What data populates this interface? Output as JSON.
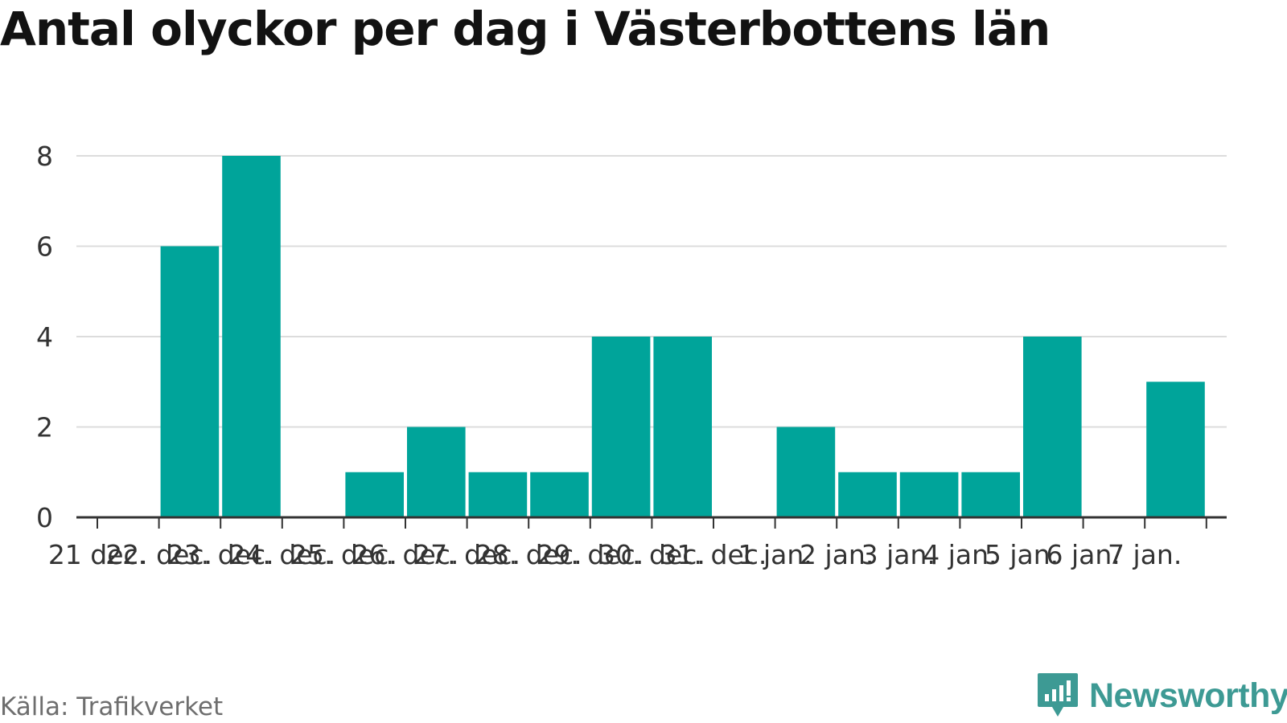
{
  "title": "Antal olyckor per dag i Västerbottens län",
  "source": "Källa: Trafikverket",
  "brand": {
    "name": "Newsworthy",
    "icon": "newsworthy-logo-icon",
    "color": "#3d9a94"
  },
  "chart_data": {
    "type": "bar",
    "categories": [
      "21 dec.",
      "22. dec.",
      "23. dec.",
      "24. dec.",
      "25. dec.",
      "26. dec.",
      "27. dec.",
      "28. dec.",
      "29. dec.",
      "30. dec.",
      "31. dec.",
      "1 jan.",
      "2 jan.",
      "3 jan.",
      "4 jan.",
      "5 jan.",
      "6 jan.",
      "7 jan."
    ],
    "values": [
      0,
      6,
      8,
      0,
      1,
      2,
      1,
      1,
      4,
      4,
      0,
      2,
      1,
      1,
      1,
      4,
      0,
      3
    ],
    "ylim": [
      0,
      8
    ],
    "yticks": [
      0,
      2,
      4,
      6,
      8
    ],
    "xlabel": "",
    "ylabel": "",
    "grid": true,
    "legend": "none",
    "bar_color": "#00a49a"
  }
}
